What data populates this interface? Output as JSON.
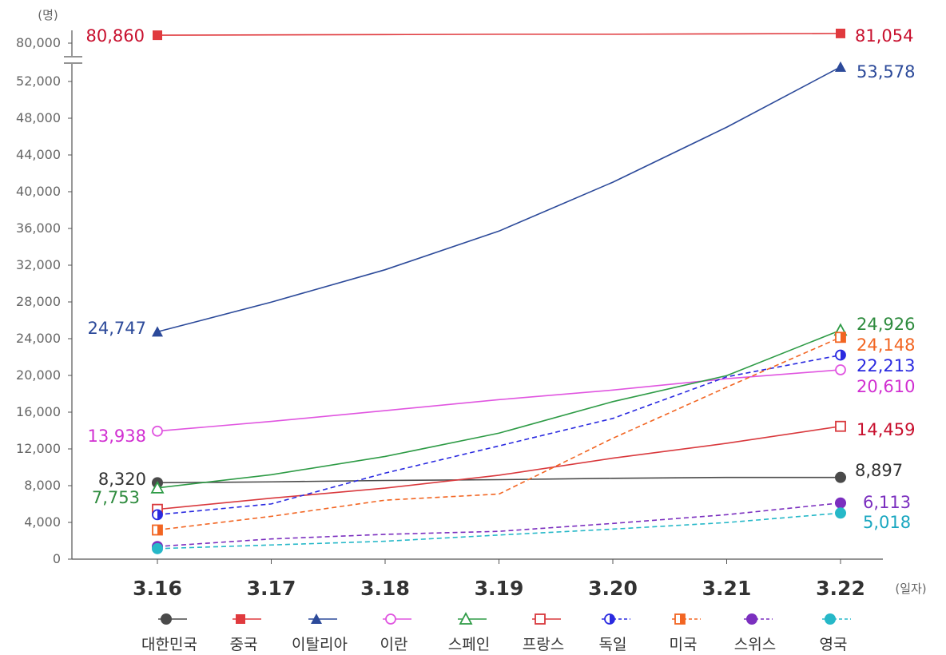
{
  "chart_data": {
    "type": "line",
    "y_unit": "(명)",
    "x_unit": "(일자)",
    "categories": [
      "3.16",
      "3.17",
      "3.18",
      "3.19",
      "3.20",
      "3.21",
      "3.22"
    ],
    "y_ticks": [
      "0",
      "4,000",
      "8,000",
      "12,000",
      "16,000",
      "20,000",
      "24,000",
      "28,000",
      "32,000",
      "36,000",
      "40,000",
      "44,000",
      "48,000",
      "52,000",
      "80,000"
    ],
    "y_axis_break": {
      "below": 52000,
      "above": 80000
    },
    "grid": false,
    "legend_position": "bottom",
    "series": [
      {
        "name": "대한민국",
        "color": "#4a4a4a",
        "marker": "filled-circle",
        "dashed": false,
        "values": [
          8320,
          8413,
          8565,
          8652,
          8799,
          8897,
          8897
        ],
        "labels": {
          "start": "8,320",
          "end": "8,897"
        },
        "label_color": "#333333"
      },
      {
        "name": "중국",
        "color": "#e03a3e",
        "marker": "filled-square",
        "dashed": false,
        "values": [
          80860,
          80894,
          80928,
          80967,
          80967,
          81008,
          81054
        ],
        "labels": {
          "start": "80,860",
          "end": "81,054"
        },
        "label_color": "#c8102e"
      },
      {
        "name": "이탈리아",
        "color": "#2c4a9a",
        "marker": "filled-triangle",
        "dashed": false,
        "values": [
          24747,
          27980,
          31506,
          35713,
          41035,
          47021,
          53578
        ],
        "labels": {
          "start": "24,747",
          "end": "53,578"
        },
        "label_color": "#2c4a9a"
      },
      {
        "name": "이란",
        "color": "#e055e0",
        "marker": "open-circle",
        "dashed": false,
        "values": [
          13938,
          14991,
          16169,
          17361,
          18407,
          19644,
          20610
        ],
        "labels": {
          "start": "13,938",
          "end": "20,610"
        },
        "label_color": "#d12fd1"
      },
      {
        "name": "스페인",
        "color": "#2e9b46",
        "marker": "open-triangle",
        "dashed": false,
        "values": [
          7753,
          9191,
          11178,
          13716,
          17147,
          19980,
          24926
        ],
        "labels": {
          "start": "7,753",
          "end": "24,926"
        },
        "label_color": "#2e8b3e"
      },
      {
        "name": "프랑스",
        "color": "#d9393d",
        "marker": "open-square",
        "dashed": false,
        "values": [
          5423,
          6633,
          7730,
          9134,
          10995,
          12612,
          14459
        ],
        "labels": {
          "start": "",
          "end": "14,459"
        },
        "label_color": "#c8102e"
      },
      {
        "name": "독일",
        "color": "#2a2ae0",
        "marker": "half-circle",
        "dashed": true,
        "values": [
          4838,
          6012,
          9367,
          12327,
          15320,
          19848,
          22213
        ],
        "labels": {
          "start": "",
          "end": "22,213"
        },
        "label_color": "#2a2ae0"
      },
      {
        "name": "미국",
        "color": "#f26522",
        "marker": "half-square",
        "dashed": true,
        "values": [
          3174,
          4661,
          6421,
          7087,
          13159,
          18719,
          24148
        ],
        "labels": {
          "start": "",
          "end": "24,148"
        },
        "label_color": "#f26522"
      },
      {
        "name": "스위스",
        "color": "#7b2fbf",
        "marker": "filled-circle",
        "dashed": true,
        "values": [
          1375,
          2200,
          2700,
          3028,
          3888,
          4840,
          6113
        ],
        "labels": {
          "start": "",
          "end": "6,113"
        },
        "label_color": "#7b2fbf"
      },
      {
        "name": "영국",
        "color": "#26b8c8",
        "marker": "filled-circle",
        "dashed": true,
        "values": [
          1144,
          1543,
          1950,
          2626,
          3269,
          3983,
          5018
        ],
        "labels": {
          "start": "",
          "end": "5,018"
        },
        "label_color": "#1aa7c0"
      }
    ]
  }
}
